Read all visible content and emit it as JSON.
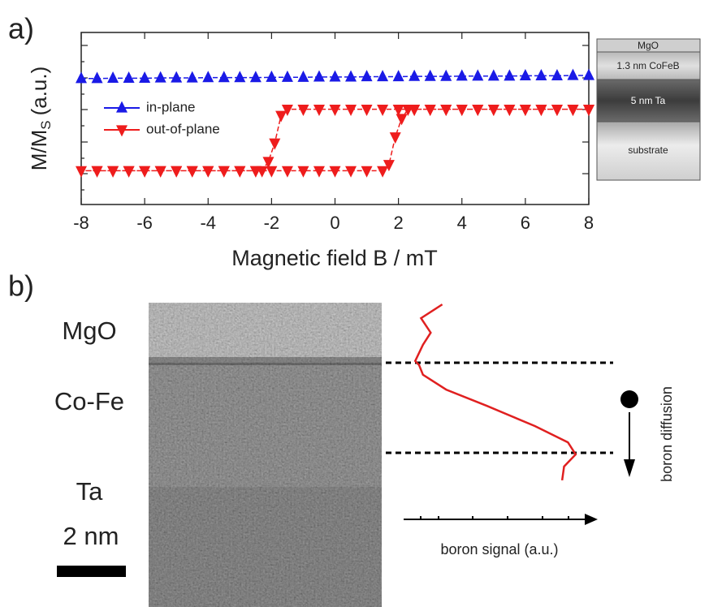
{
  "chart_data": [
    {
      "type": "hysteresis",
      "panel_label": "a)",
      "x_label": "Magnetic field B / mT",
      "y_label": [
        "M/M",
        "S",
        "(a.u.)"
      ],
      "xlim": [
        -8,
        8
      ],
      "xticks": [
        -8,
        -6,
        -4,
        -2,
        0,
        2,
        4,
        6,
        8
      ],
      "ylim": [
        -2.1,
        3.5
      ],
      "legend": "upper left",
      "series": [
        {
          "name": "in-plane",
          "color": "#1a1ae6",
          "marker": "triangle-up",
          "x": [
            -8,
            -7.5,
            -7,
            -6.5,
            -6,
            -5.5,
            -5,
            -4.5,
            -4,
            -3.5,
            -3,
            -2.5,
            -2,
            -1.5,
            -1,
            -0.5,
            0,
            0.5,
            1,
            1.5,
            2,
            2.5,
            3,
            3.5,
            4,
            4.5,
            5,
            5.5,
            6,
            6.5,
            7,
            7.5,
            8
          ],
          "values": [
            2,
            2,
            2.01,
            2.01,
            2.01,
            2.02,
            2.02,
            2.02,
            2.03,
            2.03,
            2.03,
            2.03,
            2.04,
            2.04,
            2.04,
            2.05,
            2.05,
            2.05,
            2.06,
            2.06,
            2.06,
            2.07,
            2.07,
            2.07,
            2.08,
            2.08,
            2.08,
            2.08,
            2.09,
            2.09,
            2.09,
            2.1,
            2.1
          ]
        },
        {
          "name": "out-of-plane",
          "color": "#ee1c1c",
          "marker": "triangle-down",
          "x": [
            8,
            7.5,
            7,
            6.5,
            6,
            5.5,
            5,
            4.5,
            4,
            3.5,
            3,
            2.5,
            2,
            1.5,
            1,
            0.5,
            0,
            -0.5,
            -1,
            -1.5,
            -1.7,
            -1.9,
            -2.1,
            -2.3,
            -2.5,
            -3,
            -3.5,
            -4,
            -4.5,
            -5,
            -5.5,
            -6,
            -6.5,
            -7,
            -7.5,
            -8,
            -7.5,
            -7,
            -6.5,
            -6,
            -5.5,
            -5,
            -4.5,
            -4,
            -3.5,
            -3,
            -2.5,
            -2,
            -1.5,
            -1,
            -0.5,
            0,
            0.5,
            1,
            1.5,
            1.7,
            1.9,
            2.1,
            2.3,
            2.5,
            3,
            3.5,
            4,
            4.5,
            5,
            5.5,
            6,
            6.5,
            7,
            7.5,
            8
          ],
          "values": [
            1,
            1,
            1,
            1,
            1,
            1,
            1,
            1,
            1,
            1,
            1,
            1,
            1,
            1,
            1,
            1,
            1,
            1,
            1,
            1,
            0.8,
            -0.1,
            -0.7,
            -1,
            -1,
            -1,
            -1,
            -1,
            -1,
            -1,
            -1,
            -1,
            -1,
            -1,
            -1,
            -1,
            -1,
            -1,
            -1,
            -1,
            -1,
            -1,
            -1,
            -1,
            -1,
            -1,
            -1,
            -1,
            -1,
            -1,
            -1,
            -1,
            -1,
            -1,
            -1,
            -0.8,
            0.1,
            0.7,
            1,
            1,
            1,
            1,
            1,
            1,
            1,
            1,
            1,
            1,
            1,
            1,
            1
          ]
        }
      ],
      "inset_layers": [
        "MgO",
        "1.3 nm CoFeB",
        "5 nm Ta",
        "substrate"
      ]
    },
    {
      "type": "profile",
      "panel_label": "b)",
      "x_label": "boron signal (a.u.)",
      "annotation": "boron diffusion",
      "layers": [
        "MgO",
        "Co-Fe",
        "Ta"
      ],
      "scale_bar": "2 nm",
      "xlim": [
        0,
        1
      ],
      "ylim": [
        0,
        8.8
      ],
      "series": [
        {
          "color": "#e02020",
          "depth": [
            0.05,
            0.45,
            0.87,
            1.22,
            1.69,
            1.81,
            2.09,
            2.52,
            2.99,
            3.58,
            4.05,
            4.4,
            4.75,
            5.15
          ],
          "values": [
            0.2,
            0.09,
            0.14,
            0.1,
            0.06,
            0.08,
            0.1,
            0.22,
            0.43,
            0.68,
            0.85,
            0.89,
            0.83,
            0.82
          ]
        }
      ]
    }
  ]
}
